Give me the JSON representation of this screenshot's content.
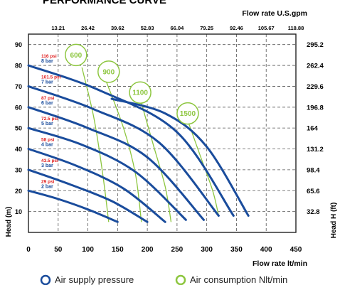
{
  "chart_data": {
    "type": "line",
    "title": "PERFORMANCE CURVE",
    "xlabel": "Flow rate  lt/min",
    "x2label": "Flow rate U.S.gpm",
    "ylabel": "Head (m)",
    "y2label": "Head H (ft)",
    "xlim": [
      0,
      450
    ],
    "ylim": [
      0,
      95
    ],
    "x_ticks": [
      0,
      50,
      100,
      150,
      200,
      250,
      300,
      350,
      400,
      450
    ],
    "y_ticks": [
      10,
      20,
      30,
      40,
      50,
      60,
      70,
      80,
      90
    ],
    "x2_ticks": [
      "13.21",
      "26.42",
      "39.62",
      "52.83",
      "66.04",
      "79.25",
      "92.46",
      "105.67",
      "118.88"
    ],
    "y2_ticks": [
      "32.8",
      "65.6",
      "98.4",
      "131.2",
      "164",
      "196.8",
      "229.6",
      "262.4",
      "295.2"
    ],
    "grid": true,
    "colors": {
      "pressure": "#1a4c9c",
      "consumption": "#8dc63f",
      "psi_text": "#e02020",
      "bar_text": "#1a4c9c"
    },
    "pressure_series": [
      {
        "psi": "29 psi",
        "bar": "2 bar",
        "points": [
          [
            0,
            20
          ],
          [
            50,
            16
          ],
          [
            100,
            11
          ],
          [
            150,
            5
          ]
        ]
      },
      {
        "psi": "43.5 psi",
        "bar": "3 bar",
        "points": [
          [
            0,
            30
          ],
          [
            70,
            23
          ],
          [
            140,
            15
          ],
          [
            200,
            5
          ]
        ]
      },
      {
        "psi": "58 psi",
        "bar": "4 bar",
        "points": [
          [
            0,
            40
          ],
          [
            80,
            32
          ],
          [
            160,
            21
          ],
          [
            230,
            5
          ]
        ]
      },
      {
        "psi": "72.5 psi",
        "bar": "5 bar",
        "points": [
          [
            0,
            50
          ],
          [
            90,
            42
          ],
          [
            180,
            29
          ],
          [
            265,
            6
          ]
        ]
      },
      {
        "psi": "87 psi",
        "bar": "6 bar",
        "points": [
          [
            0,
            60
          ],
          [
            100,
            50
          ],
          [
            200,
            36
          ],
          [
            295,
            6
          ]
        ]
      },
      {
        "psi": "101.5 psi",
        "bar": "7 bar",
        "points": [
          [
            0,
            70
          ],
          [
            110,
            59
          ],
          [
            220,
            43
          ],
          [
            320,
            8
          ]
        ]
      },
      {
        "psi": "116 psi",
        "bar": "8 bar",
        "points": [
          [
            0,
            80
          ],
          [
            120,
            68
          ],
          [
            250,
            48
          ],
          [
            345,
            8
          ]
        ]
      },
      {
        "psi": "",
        "bar": "",
        "points": [
          [
            140,
            64
          ],
          [
            230,
            57
          ],
          [
            300,
            41
          ],
          [
            370,
            8
          ]
        ]
      }
    ],
    "consumption_series": [
      {
        "label": "600",
        "points": [
          [
            90,
            79
          ],
          [
            110,
            55
          ],
          [
            125,
            28
          ],
          [
            135,
            5
          ]
        ]
      },
      {
        "label": "900",
        "points": [
          [
            130,
            73
          ],
          [
            160,
            50
          ],
          [
            180,
            28
          ],
          [
            190,
            5
          ]
        ]
      },
      {
        "label": "1100",
        "points": [
          [
            190,
            62
          ],
          [
            210,
            42
          ],
          [
            230,
            22
          ],
          [
            240,
            5
          ]
        ]
      },
      {
        "label": "1500",
        "points": [
          [
            270,
            52
          ],
          [
            290,
            36
          ],
          [
            310,
            20
          ],
          [
            320,
            8
          ]
        ]
      }
    ],
    "circle_labels": [
      {
        "text": "600",
        "x": 80,
        "y": 85
      },
      {
        "text": "900",
        "x": 135,
        "y": 77
      },
      {
        "text": "1100",
        "x": 188,
        "y": 67
      },
      {
        "text": "1500",
        "x": 268,
        "y": 57
      }
    ]
  },
  "legend": {
    "pressure_label": "Air supply pressure",
    "consumption_label": "Air consumption Nlt/min"
  }
}
